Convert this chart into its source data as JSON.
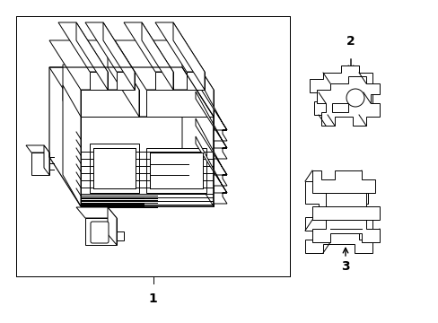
{
  "bg_color": "#ffffff",
  "line_color": "#000000",
  "lw": 0.7,
  "fig_width": 4.89,
  "fig_height": 3.6,
  "dpi": 100,
  "label_1": "1",
  "label_2": "2",
  "label_3": "3",
  "font_size": 10
}
